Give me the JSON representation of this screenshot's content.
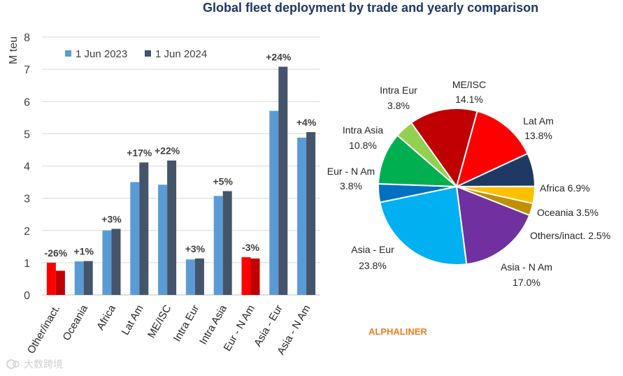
{
  "page": {
    "title": "Global fleet deployment by trade and yearly comparison",
    "source": "ALPHALINER",
    "watermark": "大数跨境"
  },
  "chart_data": [
    {
      "type": "bar",
      "title": "Global fleet deployment by trade and yearly comparison",
      "ylabel": "M teu",
      "xlabel": "",
      "ylim": [
        0,
        8
      ],
      "yticks": [
        0,
        1,
        2,
        3,
        4,
        5,
        6,
        7,
        8
      ],
      "grid": true,
      "legend_position": "top-left",
      "categories": [
        "Other/inact.",
        "Oceania",
        "Africa",
        "Lat Am",
        "ME/ISC",
        "Intra Eur",
        "Intra Asia",
        "Eur - N Am",
        "Asia - Eur",
        "Asia - N Am"
      ],
      "series": [
        {
          "name": "1 Jun 2023",
          "color": "#5b9bd5",
          "values": [
            1.0,
            1.04,
            2.0,
            3.5,
            3.42,
            1.1,
            3.07,
            1.17,
            5.71,
            4.88
          ]
        },
        {
          "name": "1 Jun 2024",
          "color": "#44546a",
          "values": [
            0.75,
            1.05,
            2.05,
            4.11,
            4.17,
            1.13,
            3.22,
            1.13,
            7.08,
            5.05
          ]
        }
      ],
      "highlight": {
        "categories": [
          "Other/inact.",
          "Eur - N Am"
        ],
        "colors": [
          "#ff0000",
          "#c00000"
        ]
      },
      "change_labels": [
        "-26%",
        "+1%",
        "+3%",
        "+17%",
        "+22%",
        "+3%",
        "+5%",
        "-3%",
        "+24%",
        "+4%"
      ]
    },
    {
      "type": "pie",
      "title": "",
      "slices": [
        {
          "label": "ME/ISC",
          "value": 14.1,
          "pct": "14.1%",
          "color": "#c00000"
        },
        {
          "label": "Lat Am",
          "value": 13.8,
          "pct": "13.8%",
          "color": "#ff0000"
        },
        {
          "label": "Africa",
          "value": 6.9,
          "pct": "6.9%",
          "color": "#1f3864"
        },
        {
          "label": "Oceania",
          "value": 3.5,
          "pct": "3.5%",
          "color": "#ffc000"
        },
        {
          "label": "Others/inact.",
          "value": 2.5,
          "pct": "2.5%",
          "color": "#c09000"
        },
        {
          "label": "Asia - N Am",
          "value": 17.0,
          "pct": "17.0%",
          "color": "#7030a0"
        },
        {
          "label": "Asia - Eur",
          "value": 23.8,
          "pct": "23.8%",
          "color": "#00b0f0"
        },
        {
          "label": "Eur - N Am",
          "value": 3.8,
          "pct": "3.8%",
          "color": "#0070c0"
        },
        {
          "label": "Intra Asia",
          "value": 10.8,
          "pct": "10.8%",
          "color": "#00b050"
        },
        {
          "label": "Intra Eur",
          "value": 3.8,
          "pct": "3.8%",
          "color": "#92d050"
        }
      ]
    }
  ]
}
